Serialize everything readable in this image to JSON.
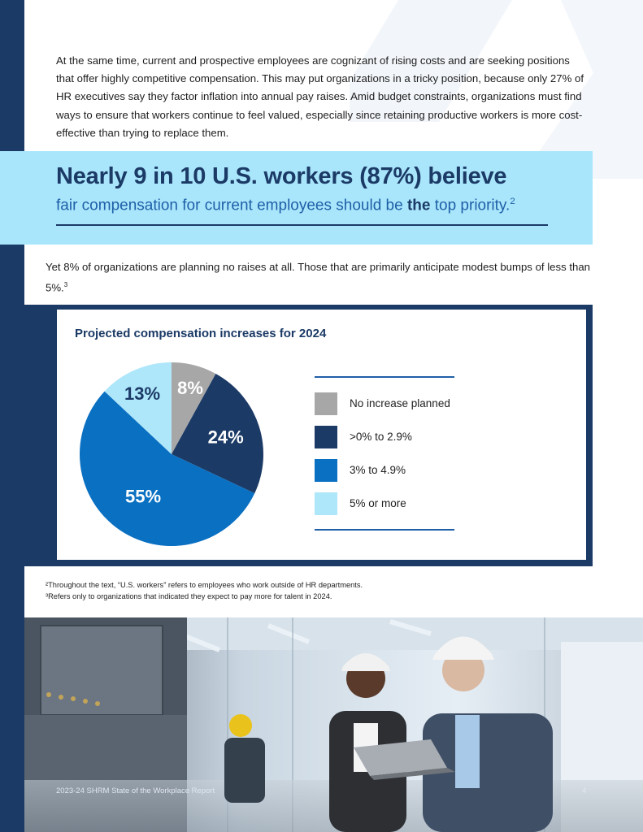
{
  "intro_paragraph": "At the same time, current and prospective employees are cognizant of rising costs and are seeking positions that offer highly competitive compensation. This may put organizations in a tricky position, because only 27% of HR executives say they factor inflation into annual pay raises. Amid budget constraints, organizations must find ways to ensure that workers continue to feel valued, especially since retaining productive workers is more cost-effective than trying to replace them.",
  "callout": {
    "headline": "Nearly 9 in 10 U.S. workers (87%) believe",
    "sub_before": "fair compensation for current employees should be ",
    "sub_bold": "the",
    "sub_after": " top priority.",
    "sub_footnote": "2"
  },
  "body_paragraph": {
    "text": "Yet 8% of organizations are planning no raises at all. Those that are primarily anticipate modest bumps of less than 5%.",
    "footnote": "3"
  },
  "chart_data": {
    "type": "pie",
    "title": "Projected compensation increases for 2024",
    "categories": [
      "No increase planned",
      ">0% to 2.9%",
      "3% to 4.9%",
      "5% or more"
    ],
    "values": [
      8,
      24,
      55,
      13
    ],
    "labels": [
      "8%",
      "24%",
      "55%",
      "13%"
    ],
    "colors": [
      "#a7a7a7",
      "#1b3a66",
      "#0a70c2",
      "#aee6fa"
    ],
    "legend_position": "right"
  },
  "footnotes": [
    "²Throughout the text, “U.S. workers” refers to employees who work outside of HR departments.",
    "³Refers only to organizations that indicated they expect to pay more for talent in 2024."
  ],
  "page_footer": {
    "report_name": "2023-24 SHRM State of the Workplace Report",
    "page_number": "4"
  },
  "photo": {
    "description_icon": "factory-workers-photo"
  }
}
